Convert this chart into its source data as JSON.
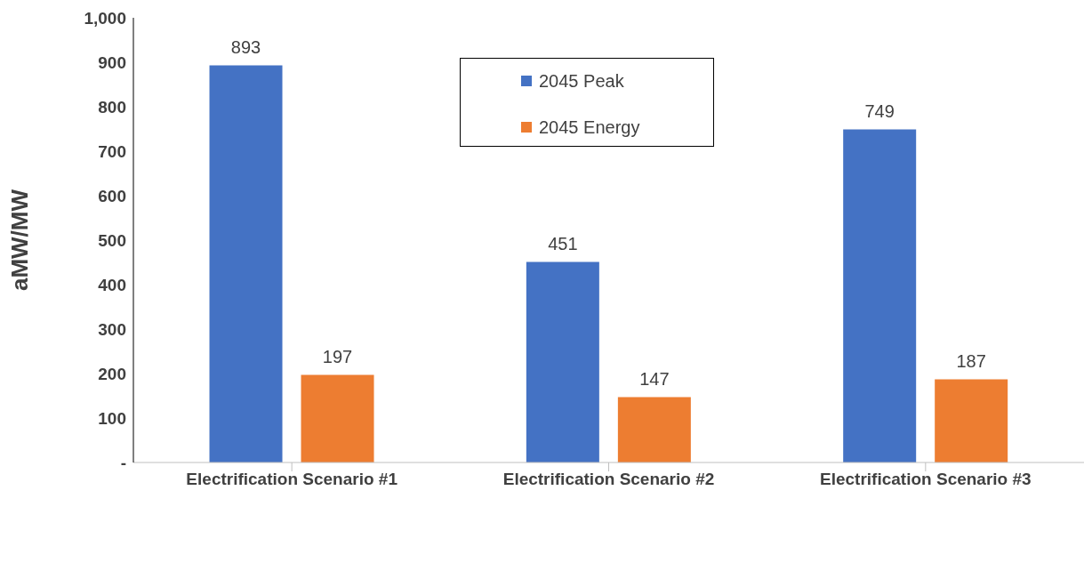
{
  "chart_data": {
    "type": "bar",
    "ylabel": "aMW/MW",
    "categories": [
      "Electrification Scenario #1",
      "Electrification Scenario #2",
      "Electrification Scenario #3"
    ],
    "series": [
      {
        "name": "2045 Peak",
        "color": "#4472c4",
        "values": [
          893,
          451,
          749
        ]
      },
      {
        "name": "2045 Energy",
        "color": "#ed7d31",
        "values": [
          197,
          147,
          187
        ]
      }
    ],
    "ylim": [
      0,
      1000
    ],
    "yticks": [
      {
        "value": 0,
        "label": "-"
      },
      100,
      200,
      300,
      400,
      500,
      600,
      700,
      800,
      900,
      {
        "value": 1000,
        "label": "1,000"
      }
    ],
    "grid": false,
    "legend": "top",
    "data_labels": true
  }
}
